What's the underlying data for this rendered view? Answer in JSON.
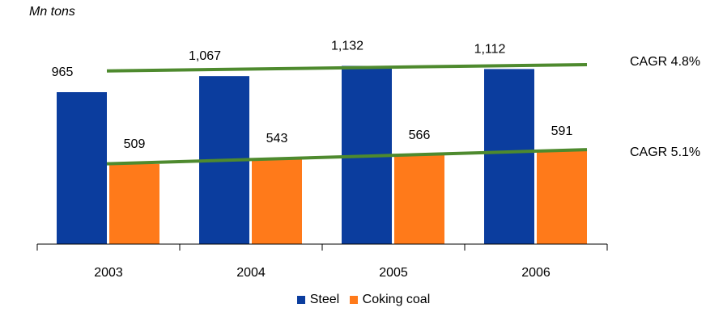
{
  "chart_data": {
    "type": "bar",
    "unit_label": "Mn tons",
    "categories": [
      "2003",
      "2004",
      "2005",
      "2006"
    ],
    "series": [
      {
        "name": "Steel",
        "values": [
          965,
          1067,
          1132,
          1112
        ],
        "labels": [
          "965",
          "1,067",
          "1,132",
          "1,112"
        ],
        "color": "#0B3D9E"
      },
      {
        "name": "Coking coal",
        "values": [
          509,
          543,
          566,
          591
        ],
        "labels": [
          "509",
          "543",
          "566",
          "591"
        ],
        "color": "#FF7A1A"
      }
    ],
    "ylim": [
      0,
      1150
    ],
    "trendlines": [
      {
        "series": "Steel",
        "label": "CAGR 4.8%",
        "from": 1100,
        "to": 1140,
        "color": "#4E8A2E"
      },
      {
        "series": "Coking coal",
        "label": "CAGR 5.1%",
        "from": 510,
        "to": 600,
        "color": "#4E8A2E"
      }
    ],
    "legend_position": "bottom",
    "grid": false
  }
}
